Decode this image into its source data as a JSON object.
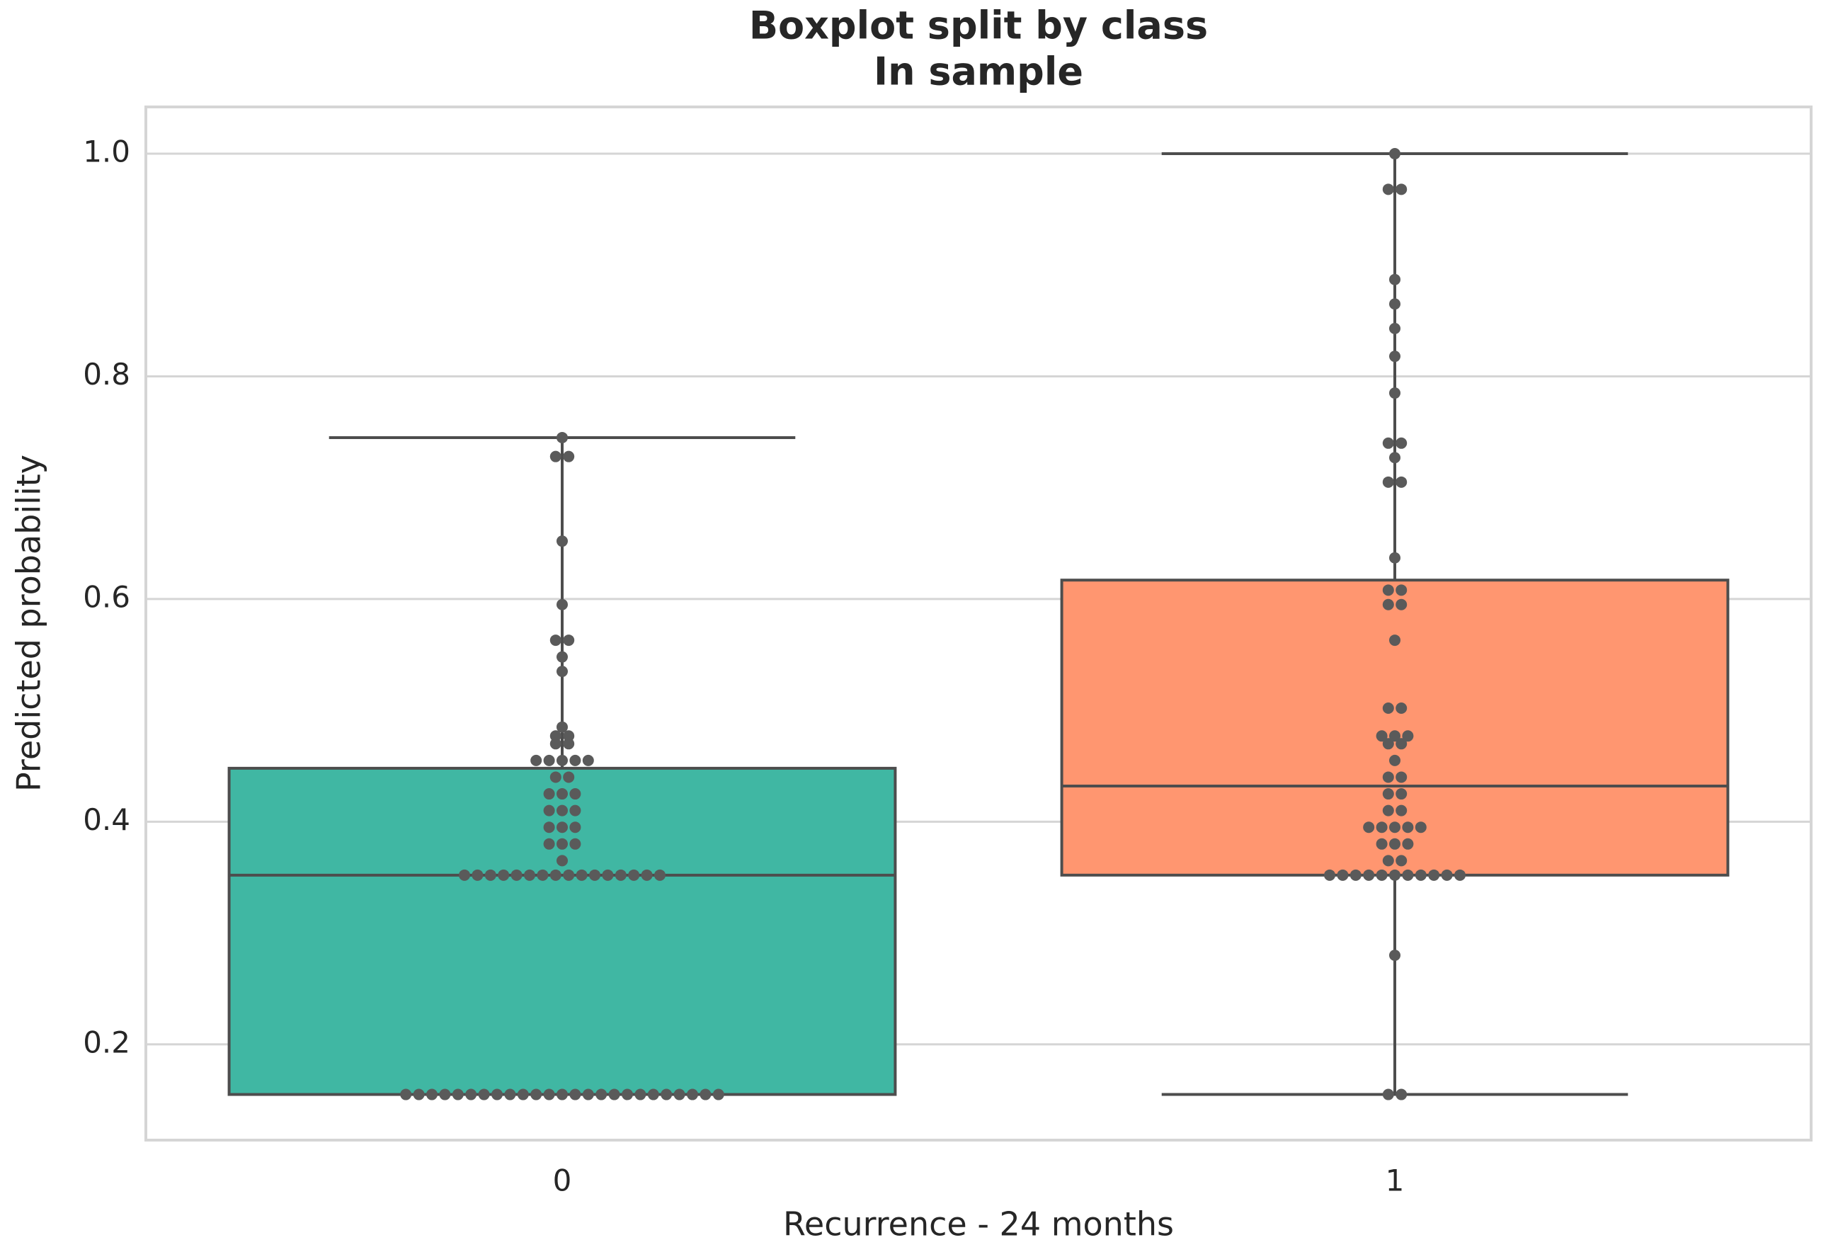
{
  "chart_data": {
    "type": "box",
    "title": "Boxplot split by class",
    "subtitle": "In sample",
    "x_label": "Recurrence - 24 months",
    "y_label": "Predicted probability",
    "categories": [
      "0",
      "1"
    ],
    "ylim": [
      0.114,
      1.042
    ],
    "yticks": [
      0.2,
      0.4,
      0.6,
      0.8,
      {
        "value": 1,
        "label": "1.0"
      }
    ],
    "grid": true,
    "point_color": "#5a5a5a",
    "line_color": "#4d4d4d",
    "boxes": [
      {
        "color": "#40b7a3",
        "whislo": 0.155,
        "q1": 0.155,
        "med": 0.352,
        "q3": 0.448,
        "whishi": 0.745,
        "points": [
          0.155,
          0.155,
          0.155,
          0.155,
          0.155,
          0.155,
          0.155,
          0.155,
          0.155,
          0.155,
          0.155,
          0.155,
          0.155,
          0.155,
          0.155,
          0.155,
          0.155,
          0.155,
          0.155,
          0.155,
          0.155,
          0.155,
          0.155,
          0.155,
          0.155,
          0.352,
          0.352,
          0.352,
          0.352,
          0.352,
          0.352,
          0.352,
          0.352,
          0.352,
          0.352,
          0.352,
          0.352,
          0.352,
          0.352,
          0.352,
          0.352,
          0.365,
          0.38,
          0.38,
          0.38,
          0.395,
          0.395,
          0.395,
          0.41,
          0.41,
          0.41,
          0.425,
          0.425,
          0.425,
          0.44,
          0.44,
          0.455,
          0.455,
          0.455,
          0.455,
          0.455,
          0.47,
          0.47,
          0.477,
          0.477,
          0.485,
          0.535,
          0.548,
          0.563,
          0.563,
          0.595,
          0.652,
          0.728,
          0.728,
          0.745
        ]
      },
      {
        "color": "#ff9670",
        "whislo": 0.155,
        "q1": 0.352,
        "med": 0.432,
        "q3": 0.617,
        "whishi": 1,
        "points": [
          0.155,
          0.155,
          0.28,
          0.352,
          0.352,
          0.352,
          0.352,
          0.352,
          0.352,
          0.352,
          0.352,
          0.352,
          0.352,
          0.352,
          0.365,
          0.365,
          0.38,
          0.38,
          0.38,
          0.395,
          0.395,
          0.395,
          0.395,
          0.395,
          0.41,
          0.41,
          0.425,
          0.425,
          0.44,
          0.44,
          0.455,
          0.47,
          0.47,
          0.477,
          0.477,
          0.477,
          0.502,
          0.502,
          0.563,
          0.595,
          0.595,
          0.608,
          0.608,
          0.637,
          0.705,
          0.705,
          0.727,
          0.74,
          0.74,
          0.785,
          0.818,
          0.843,
          0.865,
          0.887,
          0.968,
          0.968,
          1
        ]
      }
    ]
  }
}
